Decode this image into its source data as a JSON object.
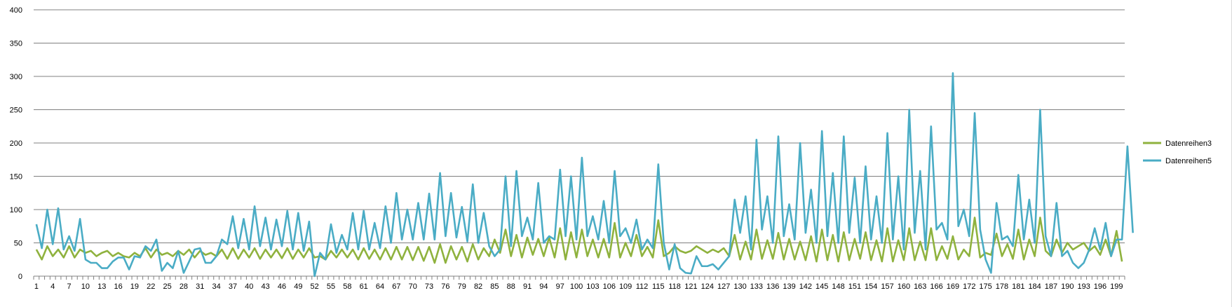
{
  "chart_data": {
    "type": "line",
    "title": "",
    "xlabel": "",
    "ylabel": "",
    "ylim": [
      0,
      400
    ],
    "yticks": [
      0,
      50,
      100,
      150,
      200,
      250,
      300,
      350,
      400
    ],
    "xlim": [
      1,
      200
    ],
    "xtick_every": 3,
    "grid": true,
    "legend": "right",
    "series": [
      {
        "name": "Datenreihen3",
        "color": "#8fb23e",
        "values": [
          40,
          25,
          45,
          30,
          40,
          28,
          45,
          28,
          40,
          35,
          38,
          30,
          35,
          38,
          30,
          35,
          30,
          28,
          35,
          30,
          42,
          28,
          40,
          32,
          35,
          30,
          38,
          32,
          40,
          28,
          38,
          32,
          35,
          30,
          40,
          26,
          42,
          26,
          40,
          28,
          42,
          26,
          40,
          28,
          40,
          27,
          42,
          26,
          40,
          28,
          42,
          28,
          30,
          25,
          38,
          28,
          40,
          28,
          40,
          25,
          42,
          26,
          40,
          25,
          42,
          25,
          44,
          25,
          44,
          24,
          44,
          23,
          44,
          20,
          48,
          20,
          45,
          25,
          44,
          22,
          48,
          25,
          42,
          30,
          55,
          35,
          70,
          30,
          62,
          28,
          58,
          32,
          56,
          30,
          58,
          28,
          72,
          25,
          66,
          28,
          70,
          30,
          55,
          28,
          56,
          28,
          80,
          28,
          50,
          30,
          62,
          30,
          44,
          28,
          84,
          30,
          35,
          45,
          38,
          35,
          38,
          45,
          40,
          35,
          40,
          36,
          42,
          30,
          62,
          25,
          52,
          25,
          70,
          26,
          54,
          26,
          65,
          25,
          56,
          25,
          52,
          24,
          60,
          22,
          70,
          24,
          62,
          22,
          66,
          24,
          56,
          26,
          66,
          24,
          54,
          22,
          72,
          22,
          54,
          24,
          72,
          24,
          52,
          24,
          72,
          24,
          45,
          26,
          60,
          25,
          40,
          30,
          88,
          28,
          35,
          32,
          64,
          30,
          48,
          26,
          70,
          25,
          55,
          30,
          88,
          38,
          30,
          55,
          35,
          50,
          40,
          45,
          50,
          38,
          45,
          32,
          55,
          30,
          68,
          22
        ]
      },
      {
        "name": "Datenreihen5",
        "color": "#4aacc5",
        "values": [
          78,
          42,
          100,
          48,
          102,
          40,
          60,
          38,
          86,
          25,
          20,
          20,
          12,
          12,
          22,
          28,
          28,
          10,
          30,
          28,
          45,
          38,
          55,
          8,
          20,
          12,
          38,
          5,
          22,
          40,
          42,
          20,
          20,
          30,
          55,
          48,
          90,
          42,
          86,
          40,
          105,
          45,
          88,
          40,
          85,
          45,
          98,
          40,
          95,
          38,
          82,
          0,
          35,
          25,
          78,
          35,
          62,
          40,
          95,
          40,
          98,
          40,
          80,
          42,
          105,
          50,
          125,
          55,
          100,
          55,
          110,
          55,
          124,
          55,
          155,
          60,
          125,
          58,
          104,
          52,
          138,
          50,
          95,
          45,
          30,
          40,
          150,
          45,
          158,
          60,
          88,
          55,
          140,
          50,
          60,
          55,
          160,
          60,
          150,
          55,
          178,
          60,
          90,
          55,
          113,
          50,
          158,
          60,
          72,
          50,
          85,
          40,
          55,
          42,
          168,
          50,
          10,
          48,
          12,
          5,
          4,
          30,
          15,
          15,
          18,
          10,
          20,
          30,
          115,
          65,
          120,
          40,
          205,
          70,
          120,
          50,
          210,
          60,
          108,
          55,
          200,
          65,
          130,
          50,
          218,
          60,
          155,
          50,
          210,
          65,
          148,
          50,
          165,
          55,
          120,
          50,
          215,
          55,
          150,
          40,
          250,
          65,
          158,
          40,
          225,
          70,
          80,
          55,
          305,
          75,
          100,
          60,
          245,
          70,
          25,
          5,
          110,
          55,
          60,
          45,
          152,
          55,
          115,
          50,
          250,
          60,
          30,
          110,
          30,
          38,
          20,
          12,
          20,
          40,
          72,
          40,
          80,
          30,
          55,
          55,
          195,
          65
        ]
      }
    ]
  }
}
